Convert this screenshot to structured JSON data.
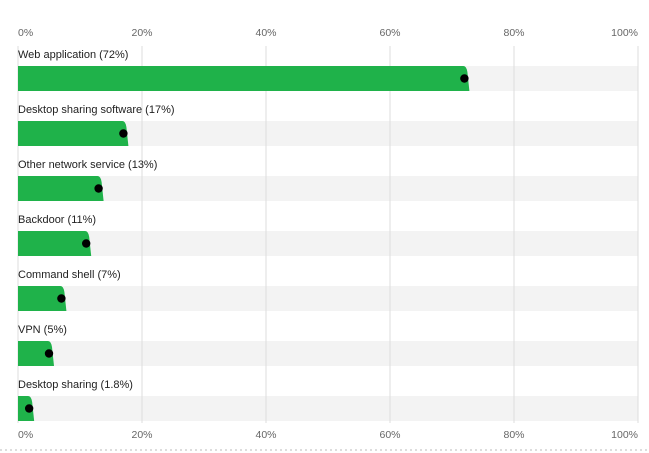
{
  "chart_data": {
    "type": "hbar",
    "categories": [
      "Web application (72%)",
      "Desktop sharing software (17%)",
      "Other network service (13%)",
      "Backdoor (11%)",
      "Command shell (7%)",
      "VPN (5%)",
      "Desktop sharing (1.8%)"
    ],
    "values": [
      72,
      17,
      13,
      11,
      7,
      5,
      1.8
    ],
    "color": "#1fb24a",
    "xlim": [
      0,
      100
    ],
    "xticks": [
      {
        "value": 0,
        "label": "0%"
      },
      {
        "value": 20,
        "label": "20%"
      },
      {
        "value": 40,
        "label": "40%"
      },
      {
        "value": 60,
        "label": "60%"
      },
      {
        "value": 80,
        "label": "80%"
      },
      {
        "value": 100,
        "label": "100%"
      }
    ],
    "grid": true
  }
}
